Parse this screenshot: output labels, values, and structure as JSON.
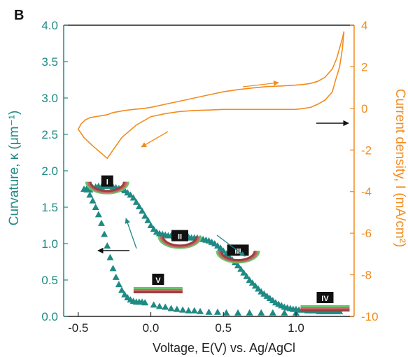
{
  "panel_label": "B",
  "colors": {
    "curvature": "#1f8a84",
    "current": "#f28c1e",
    "axes": "#222222",
    "arrow": "#111111"
  },
  "chart_data": {
    "type": "scatter",
    "xlabel": "Voltage, E(V) vs. Ag/AgCl",
    "ylabel_left": "Curvature, κ (μm⁻¹)",
    "ylabel_right": "Current density, I (mA/cm²)",
    "xlim": [
      -0.6,
      1.4
    ],
    "ylim_left": [
      0,
      4
    ],
    "ylim_right": [
      -10,
      4
    ],
    "x_ticks": [
      {
        "v": -0.5,
        "label": "-0.5"
      },
      {
        "v": 0,
        "label": "0.0"
      },
      {
        "v": 0.5,
        "label": "0.5"
      },
      {
        "v": 1.0,
        "label": "1.0"
      }
    ],
    "y_left_ticks": [
      {
        "v": 0,
        "label": "0.0"
      },
      {
        "v": 0.5,
        "label": "0.5"
      },
      {
        "v": 1,
        "label": "1.0"
      },
      {
        "v": 1.5,
        "label": "1.5"
      },
      {
        "v": 2,
        "label": "2.0"
      },
      {
        "v": 2.5,
        "label": "2.5"
      },
      {
        "v": 3,
        "label": "3.0"
      },
      {
        "v": 3.5,
        "label": "3.5"
      },
      {
        "v": 4,
        "label": "4.0"
      }
    ],
    "y_right_ticks": [
      {
        "v": -10,
        "label": "-10"
      },
      {
        "v": -8,
        "label": "-8"
      },
      {
        "v": -6,
        "label": "-6"
      },
      {
        "v": -4,
        "label": "-4"
      },
      {
        "v": -2,
        "label": "-2"
      },
      {
        "v": 0,
        "label": "0"
      },
      {
        "v": 2,
        "label": "2"
      },
      {
        "v": 4,
        "label": "4"
      }
    ],
    "series": [
      {
        "axis": "left",
        "marker": "triangle",
        "x": [
          -0.46,
          -0.44,
          -0.42,
          -0.4,
          -0.38,
          -0.36,
          -0.34,
          -0.32,
          -0.3,
          -0.28,
          -0.26,
          -0.24,
          -0.22,
          -0.2,
          -0.18,
          -0.16,
          -0.14,
          -0.12,
          -0.1,
          -0.08,
          -0.06,
          -0.04,
          -0.02,
          0.0,
          0.02,
          0.04,
          0.06,
          0.08,
          0.1,
          0.12,
          0.14,
          0.16,
          0.18,
          0.2,
          0.22,
          0.24,
          0.26,
          0.28,
          0.3,
          0.32,
          0.34,
          0.36,
          0.38,
          0.4,
          0.42,
          0.44,
          0.46,
          0.48,
          0.5,
          0.52,
          0.54,
          0.56,
          0.58,
          0.6,
          0.62,
          0.64,
          0.66,
          0.68,
          0.7,
          0.72,
          0.74,
          0.76,
          0.78,
          0.8,
          0.82,
          0.84,
          0.86,
          0.88,
          0.9,
          0.92,
          0.94,
          0.96,
          0.98,
          1.0,
          1.02,
          1.04,
          1.06,
          1.08,
          1.1,
          1.12,
          1.14,
          1.16,
          1.18,
          1.2,
          1.22,
          1.24,
          1.26,
          1.28,
          1.3,
          -0.44,
          -0.42,
          -0.4,
          -0.38,
          -0.36,
          -0.34,
          -0.32,
          -0.3,
          -0.28,
          -0.26,
          -0.24,
          -0.22,
          -0.2,
          -0.18,
          -0.16,
          -0.14,
          -0.12,
          -0.1,
          -0.08,
          -0.06,
          -0.04,
          0.02,
          0.06,
          0.1,
          0.14,
          0.18,
          0.22,
          0.26,
          0.3,
          0.34,
          0.4,
          0.46,
          0.52,
          0.6,
          0.68,
          0.76,
          0.84,
          0.92,
          1.0
        ],
        "y": [
          1.75,
          1.76,
          1.74,
          1.77,
          1.78,
          1.79,
          1.78,
          1.79,
          1.8,
          1.79,
          1.78,
          1.77,
          1.76,
          1.75,
          1.73,
          1.7,
          1.67,
          1.63,
          1.57,
          1.51,
          1.45,
          1.38,
          1.32,
          1.25,
          1.2,
          1.16,
          1.14,
          1.13,
          1.12,
          1.11,
          1.11,
          1.1,
          1.1,
          1.1,
          1.09,
          1.09,
          1.09,
          1.08,
          1.08,
          1.08,
          1.07,
          1.06,
          1.05,
          1.04,
          1.02,
          1.0,
          0.97,
          0.94,
          0.9,
          0.86,
          0.82,
          0.78,
          0.74,
          0.7,
          0.65,
          0.6,
          0.55,
          0.5,
          0.46,
          0.42,
          0.38,
          0.34,
          0.31,
          0.28,
          0.25,
          0.22,
          0.19,
          0.17,
          0.15,
          0.13,
          0.12,
          0.11,
          0.1,
          0.1,
          0.09,
          0.09,
          0.09,
          0.08,
          0.08,
          0.08,
          0.08,
          0.07,
          0.07,
          0.07,
          0.07,
          0.07,
          0.07,
          0.07,
          0.07,
          1.74,
          1.67,
          1.59,
          1.5,
          1.4,
          1.28,
          1.13,
          0.97,
          0.81,
          0.66,
          0.54,
          0.44,
          0.36,
          0.3,
          0.26,
          0.23,
          0.21,
          0.2,
          0.2,
          0.2,
          0.19,
          0.16,
          0.14,
          0.13,
          0.11,
          0.1,
          0.09,
          0.08,
          0.08,
          0.07,
          0.06,
          0.06,
          0.05,
          0.05,
          0.05,
          0.05,
          0.05,
          0.05,
          0.05
        ]
      },
      {
        "axis": "right",
        "type": "line",
        "x": [
          -0.5,
          -0.48,
          -0.45,
          -0.42,
          -0.38,
          -0.34,
          -0.3,
          -0.28,
          -0.26,
          -0.22,
          -0.18,
          -0.12,
          -0.05,
          0.0,
          0.1,
          0.2,
          0.3,
          0.4,
          0.5,
          0.6,
          0.7,
          0.8,
          0.9,
          1.0,
          1.05,
          1.1,
          1.15,
          1.2,
          1.25,
          1.28,
          1.3,
          1.32,
          1.33,
          1.32,
          1.3,
          1.27,
          1.25,
          1.2,
          1.15,
          1.1,
          1.05,
          1.0,
          0.9,
          0.8,
          0.7,
          0.6,
          0.5,
          0.4,
          0.3,
          0.2,
          0.1,
          0.0,
          -0.1,
          -0.2,
          -0.3,
          -0.4,
          -0.46,
          -0.48,
          -0.49,
          -0.5
        ],
        "y": [
          -1.0,
          -0.75,
          -0.55,
          -0.45,
          -0.4,
          -0.35,
          -0.3,
          -0.25,
          -0.2,
          -0.15,
          -0.1,
          -0.05,
          0.0,
          0.05,
          0.2,
          0.35,
          0.5,
          0.65,
          0.8,
          0.9,
          0.98,
          1.05,
          1.08,
          1.12,
          1.15,
          1.2,
          1.3,
          1.5,
          1.9,
          2.4,
          2.9,
          3.4,
          3.7,
          2.9,
          2.0,
          1.3,
          0.8,
          0.4,
          0.2,
          0.05,
          0.0,
          -0.05,
          -0.05,
          -0.05,
          -0.05,
          -0.05,
          -0.05,
          -0.08,
          -0.1,
          -0.15,
          -0.25,
          -0.4,
          -0.8,
          -1.4,
          -2.4,
          -1.8,
          -1.4,
          -1.2,
          -1.1,
          -1.0
        ]
      }
    ],
    "annotations": [
      {
        "id": "I",
        "label": "I",
        "x": -0.3,
        "y": 1.85
      },
      {
        "id": "II",
        "label": "II",
        "x": 0.2,
        "y": 1.1
      },
      {
        "id": "III",
        "label": "III",
        "x": 0.6,
        "y": 0.9
      },
      {
        "id": "IV",
        "label": "IV",
        "x": 1.2,
        "y": 0.25
      },
      {
        "id": "V",
        "label": "V",
        "x": 0.05,
        "y": 0.5
      }
    ]
  }
}
